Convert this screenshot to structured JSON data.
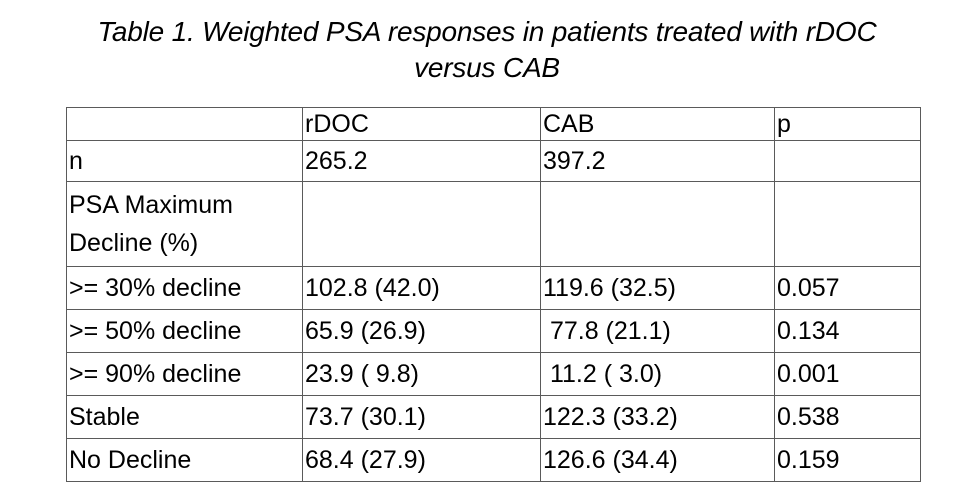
{
  "title": {
    "line1": "Table 1. Weighted PSA responses in patients treated with rDOC",
    "line2": "versus CAB"
  },
  "table": {
    "headers": [
      "",
      "rDOC",
      "CAB",
      "p"
    ],
    "rows": [
      {
        "label": "n",
        "rdoc": "265.2",
        "cab": "397.2",
        "p": ""
      },
      {
        "label": "PSA Maximum\nDecline (%)",
        "rdoc": "",
        "cab": "",
        "p": ""
      },
      {
        "label": ">= 30% decline",
        "rdoc": "102.8 (42.0)",
        "cab": "119.6 (32.5)",
        "p": "0.057"
      },
      {
        "label": ">= 50% decline",
        "rdoc": "65.9 (26.9)",
        "cab": " 77.8 (21.1)",
        "p": "0.134"
      },
      {
        "label": ">= 90% decline",
        "rdoc": "23.9 ( 9.8)",
        "cab": " 11.2 ( 3.0)",
        "p": "0.001"
      },
      {
        "label": "Stable",
        "rdoc": "73.7 (30.1)",
        "cab": "122.3 (33.2)",
        "p": "0.538"
      },
      {
        "label": "No Decline",
        "rdoc": "68.4 (27.9)",
        "cab": "126.6 (34.4)",
        "p": "0.159"
      }
    ]
  }
}
